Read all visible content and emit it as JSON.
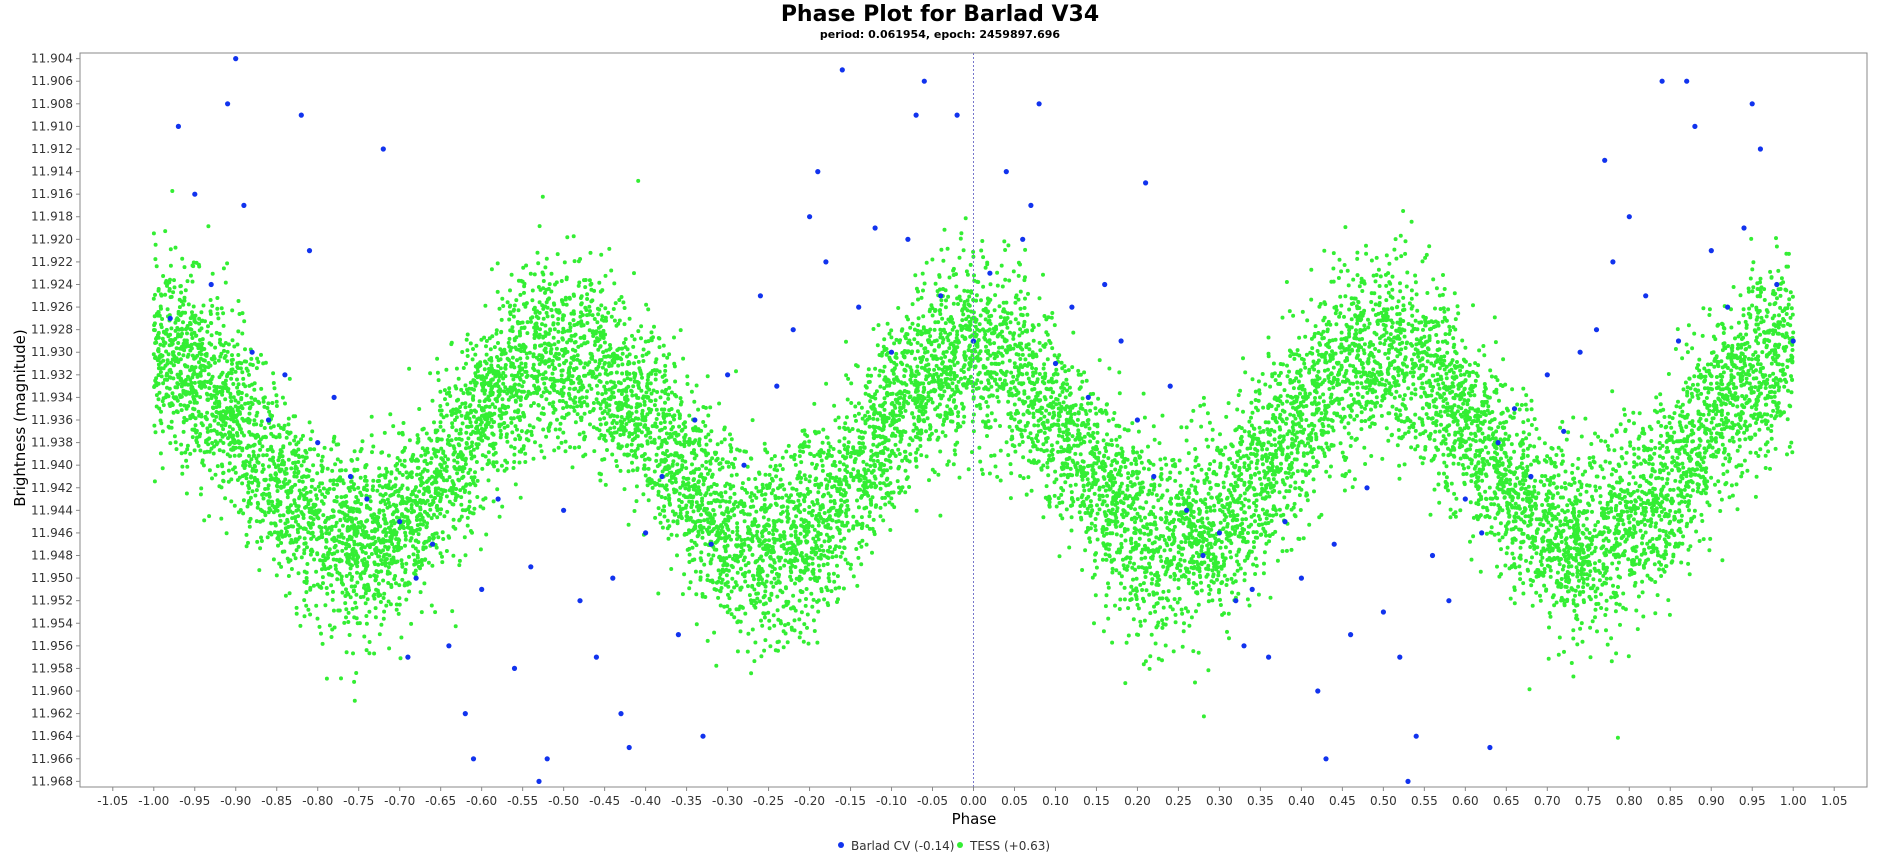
{
  "chart_data": {
    "type": "scatter",
    "title": "Phase Plot for Barlad V34",
    "subtitle": "period: 0.061954, epoch: 2459897.696",
    "xlabel": "Phase",
    "ylabel": "Brightness (magnitude)",
    "xlim": [
      -1.09,
      1.09
    ],
    "ylim": [
      11.9035,
      11.9685
    ],
    "y_inverted": true,
    "x_ticks": [
      "-1.05",
      "-1.00",
      "-0.95",
      "-0.90",
      "-0.85",
      "-0.80",
      "-0.75",
      "-0.70",
      "-0.65",
      "-0.60",
      "-0.55",
      "-0.50",
      "-0.45",
      "-0.40",
      "-0.35",
      "-0.30",
      "-0.25",
      "-0.20",
      "-0.15",
      "-0.10",
      "-0.05",
      "0.00",
      "0.05",
      "0.10",
      "0.15",
      "0.20",
      "0.25",
      "0.30",
      "0.35",
      "0.40",
      "0.45",
      "0.50",
      "0.55",
      "0.60",
      "0.65",
      "0.70",
      "0.75",
      "0.80",
      "0.85",
      "0.90",
      "0.95",
      "1.00",
      "1.05"
    ],
    "y_ticks": [
      "11.904",
      "11.906",
      "11.908",
      "11.910",
      "11.912",
      "11.914",
      "11.916",
      "11.918",
      "11.920",
      "11.922",
      "11.924",
      "11.926",
      "11.928",
      "11.930",
      "11.932",
      "11.934",
      "11.936",
      "11.938",
      "11.940",
      "11.942",
      "11.944",
      "11.946",
      "11.948",
      "11.950",
      "11.952",
      "11.954",
      "11.956",
      "11.958",
      "11.960",
      "11.962",
      "11.964",
      "11.966",
      "11.968"
    ],
    "grid": false,
    "zero_line": true,
    "legend_position": "bottom-center",
    "series": [
      {
        "name": "Barlad CV (-0.14)",
        "color": "#1133ee",
        "x": [
          -0.98,
          -0.95,
          -0.93,
          -0.91,
          -0.9,
          -0.88,
          -0.86,
          -0.84,
          -0.82,
          -0.8,
          -0.78,
          -0.76,
          -0.74,
          -0.72,
          -0.7,
          -0.68,
          -0.66,
          -0.64,
          -0.62,
          -0.6,
          -0.58,
          -0.56,
          -0.54,
          -0.52,
          -0.5,
          -0.48,
          -0.46,
          -0.44,
          -0.42,
          -0.4,
          -0.38,
          -0.36,
          -0.34,
          -0.32,
          -0.3,
          -0.28,
          -0.26,
          -0.24,
          -0.22,
          -0.2,
          -0.18,
          -0.16,
          -0.14,
          -0.12,
          -0.1,
          -0.08,
          -0.06,
          -0.04,
          -0.02,
          0.0,
          0.02,
          0.04,
          0.06,
          0.08,
          0.1,
          0.12,
          0.14,
          0.16,
          0.18,
          0.2,
          0.22,
          0.24,
          0.26,
          0.28,
          0.3,
          0.32,
          0.34,
          0.36,
          0.38,
          0.4,
          0.42,
          0.44,
          0.46,
          0.48,
          0.5,
          0.52,
          0.54,
          0.56,
          0.58,
          0.6,
          0.62,
          0.64,
          0.66,
          0.68,
          0.7,
          0.72,
          0.74,
          0.76,
          0.78,
          0.8,
          0.82,
          0.84,
          0.86,
          0.88,
          0.9,
          0.92,
          0.94,
          0.96,
          0.98,
          1.0,
          -0.97,
          -0.89,
          -0.81,
          -0.69,
          -0.61,
          -0.53,
          -0.43,
          -0.33,
          -0.19,
          -0.07,
          0.07,
          0.21,
          0.33,
          0.43,
          0.53,
          0.63,
          0.77,
          0.87,
          0.95
        ],
        "y": [
          11.927,
          11.916,
          11.924,
          11.908,
          11.904,
          11.93,
          11.936,
          11.932,
          11.909,
          11.938,
          11.934,
          11.941,
          11.943,
          11.912,
          11.945,
          11.95,
          11.947,
          11.956,
          11.962,
          11.951,
          11.943,
          11.958,
          11.949,
          11.966,
          11.944,
          11.952,
          11.957,
          11.95,
          11.965,
          11.946,
          11.941,
          11.955,
          11.936,
          11.947,
          11.932,
          11.94,
          11.925,
          11.933,
          11.928,
          11.918,
          11.922,
          11.905,
          11.926,
          11.919,
          11.93,
          11.92,
          11.906,
          11.925,
          11.909,
          11.929,
          11.923,
          11.914,
          11.92,
          11.908,
          11.931,
          11.926,
          11.934,
          11.924,
          11.929,
          11.936,
          11.941,
          11.933,
          11.944,
          11.948,
          11.946,
          11.952,
          11.951,
          11.957,
          11.945,
          11.95,
          11.96,
          11.947,
          11.955,
          11.942,
          11.953,
          11.957,
          11.964,
          11.948,
          11.952,
          11.943,
          11.946,
          11.938,
          11.935,
          11.941,
          11.932,
          11.937,
          11.93,
          11.928,
          11.922,
          11.918,
          11.925,
          11.906,
          11.929,
          11.91,
          11.921,
          11.926,
          11.919,
          11.912,
          11.924,
          11.929,
          11.91,
          11.917,
          11.921,
          11.957,
          11.966,
          11.968,
          11.962,
          11.964,
          11.914,
          11.909,
          11.917,
          11.915,
          11.956,
          11.966,
          11.968,
          11.965,
          11.913,
          11.906,
          11.908
        ]
      },
      {
        "name": "TESS (+0.63)",
        "color": "#33ee33",
        "count": 42000,
        "model": {
          "mean": 11.9385,
          "amplitude": 0.0085,
          "peaks_per_cycle": 2
        },
        "scatter_std": 0.0042
      }
    ]
  }
}
